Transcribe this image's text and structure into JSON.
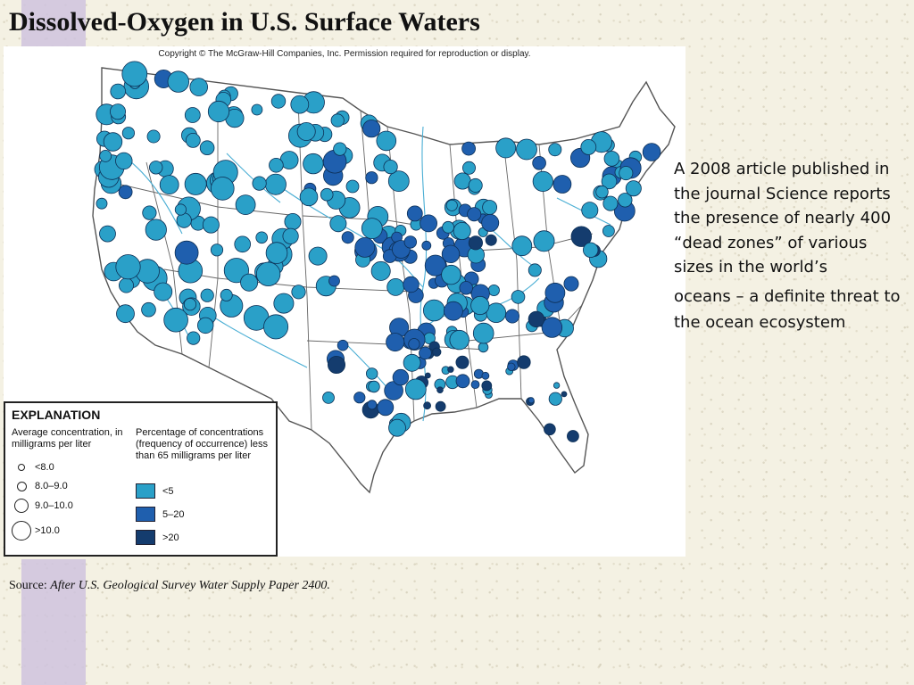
{
  "slide": {
    "title": "Dissolved-Oxygen in U.S. Surface Waters",
    "body_paragraphs": [
      "A 2008 article published in the journal Science reports the presence of nearly 400 “dead zones” of various sizes in the world’s",
      "oceans – a definite threat to the ocean ecosystem"
    ],
    "source_label": "Source:",
    "source_citation": "After U.S. Geological Survey Water Supply Paper 2400."
  },
  "map": {
    "copyright": "Copyright © The McGraw-Hill Companies, Inc. Permission required for reproduction or display.",
    "legend": {
      "heading": "EXPLANATION",
      "size_title": "Average concentration, in milligrams per liter",
      "sizes": [
        {
          "label": "<8.0",
          "tier": 1
        },
        {
          "label": "8.0–9.0",
          "tier": 2
        },
        {
          "label": "9.0–10.0",
          "tier": 3
        },
        {
          "label": ">10.0",
          "tier": 4
        }
      ],
      "color_title": "Percentage of concentrations (frequency of occurrence) less than 65 milligrams per liter",
      "colors": [
        {
          "label": "<5",
          "color": "#2aa0c8"
        },
        {
          "label": "5–20",
          "color": "#1f5fae"
        },
        {
          "label": ">20",
          "color": "#143c6e"
        }
      ]
    },
    "colors": {
      "light": "#2aa0c8",
      "medium": "#1f5fae",
      "dark": "#143c6e",
      "rivers": "#4aaed4",
      "borders": "#555555"
    }
  }
}
